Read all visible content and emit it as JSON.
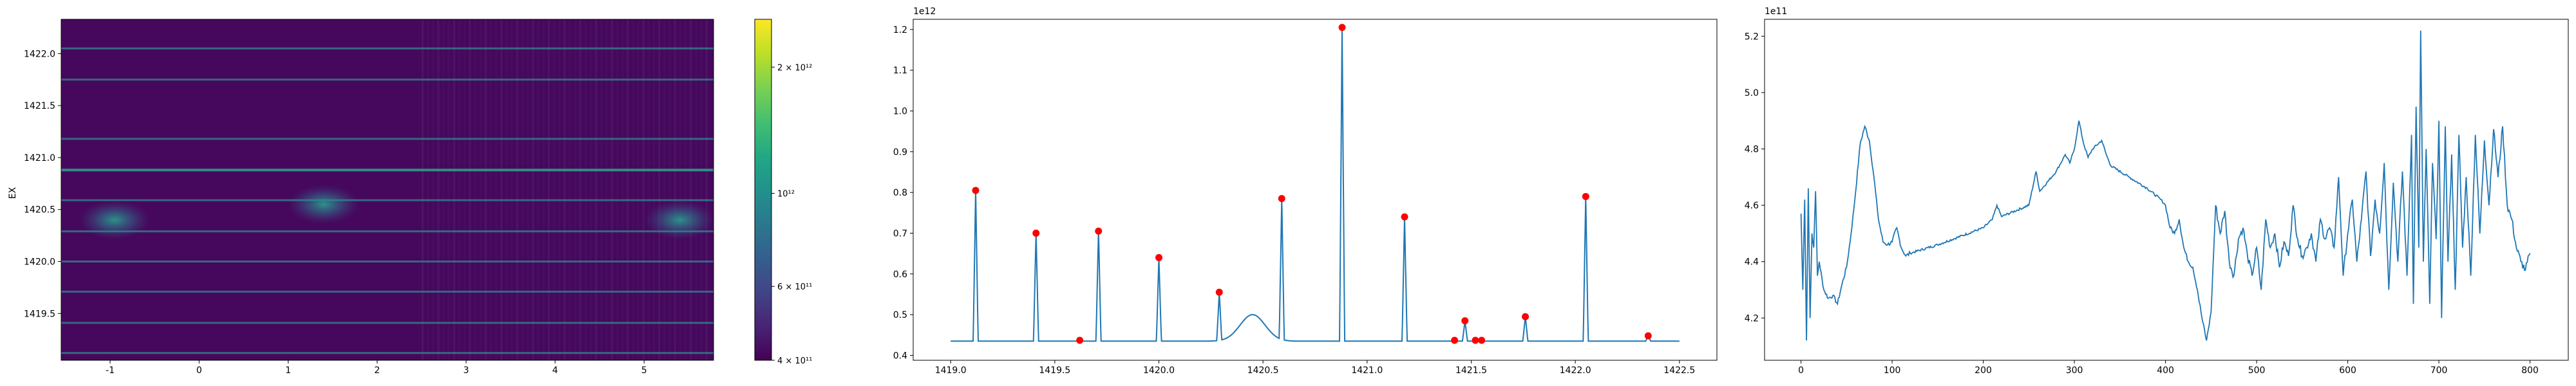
{
  "chart_data": [
    {
      "type": "heatmap",
      "ylabel": "EX",
      "xlim": [
        -1.55,
        5.78
      ],
      "ylim": [
        1419.05,
        1422.33
      ],
      "x_ticks": [
        -1,
        0,
        1,
        2,
        3,
        4,
        5
      ],
      "y_ticks": [
        1419.5,
        1420.0,
        1420.5,
        1421.0,
        1421.5,
        1422.0
      ],
      "y_tick_labels": [
        "1419.5",
        "1420.0",
        "1420.5",
        "1421.0",
        "1421.5",
        "1422.0"
      ],
      "colormap": "viridis",
      "color_scale": "log",
      "vmin": 400000000000,
      "vmax": 2600000000000,
      "colorbar_ticks": [
        {
          "value": 2000000000000,
          "label": "2 × 10¹²"
        },
        {
          "value": 1000000000000,
          "label": "10¹²"
        },
        {
          "value": 600000000000,
          "label": "6 × 10¹¹"
        },
        {
          "value": 400000000000,
          "label": "4 × 10¹¹"
        }
      ],
      "bright_lines_ex": [
        1422.05,
        1421.75,
        1421.18,
        1420.88,
        1420.59,
        1420.29,
        1420.0,
        1419.71,
        1419.41,
        1419.12
      ],
      "blobs": [
        {
          "x": -0.95,
          "ex": 1420.4,
          "value": 900000000000
        },
        {
          "x": 1.4,
          "ex": 1420.55,
          "value": 800000000000
        },
        {
          "x": 5.4,
          "ex": 1420.4,
          "value": 950000000000
        }
      ]
    },
    {
      "type": "line",
      "exponent_label": "1e12",
      "xlim": [
        1418.82,
        1422.68
      ],
      "ylim": [
        0.388,
        1.225
      ],
      "x_ticks": [
        1419.0,
        1419.5,
        1420.0,
        1420.5,
        1421.0,
        1421.5,
        1422.0,
        1422.5
      ],
      "x_tick_labels": [
        "1419.0",
        "1419.5",
        "1420.0",
        "1420.5",
        "1421.0",
        "1421.5",
        "1422.0",
        "1422.5"
      ],
      "y_ticks": [
        0.4,
        0.5,
        0.6,
        0.7,
        0.8,
        0.9,
        1.0,
        1.1,
        1.2
      ],
      "y_tick_labels": [
        "0.4",
        "0.5",
        "0.6",
        "0.7",
        "0.8",
        "0.9",
        "1.0",
        "1.1",
        "1.2"
      ],
      "line_color": "#1f77b4",
      "marker_color": "#ff0000",
      "baseline": 0.435,
      "x_start": 1419.0,
      "x_end": 1422.5,
      "peaks": [
        {
          "x": 1419.12,
          "y": 0.805
        },
        {
          "x": 1419.41,
          "y": 0.7
        },
        {
          "x": 1419.71,
          "y": 0.705
        },
        {
          "x": 1420.0,
          "y": 0.64
        },
        {
          "x": 1420.29,
          "y": 0.555
        },
        {
          "x": 1420.59,
          "y": 0.785
        },
        {
          "x": 1420.88,
          "y": 1.205
        },
        {
          "x": 1421.18,
          "y": 0.74
        },
        {
          "x": 1421.47,
          "y": 0.485
        },
        {
          "x": 1421.76,
          "y": 0.495
        },
        {
          "x": 1422.05,
          "y": 0.79
        },
        {
          "x": 1422.35,
          "y": 0.448
        }
      ],
      "hump": {
        "x": 1420.45,
        "y": 0.5
      },
      "points": [
        {
          "x": 1419.12,
          "y": 0.805
        },
        {
          "x": 1419.41,
          "y": 0.7
        },
        {
          "x": 1419.62,
          "y": 0.437
        },
        {
          "x": 1419.71,
          "y": 0.705
        },
        {
          "x": 1420.0,
          "y": 0.64
        },
        {
          "x": 1420.29,
          "y": 0.555
        },
        {
          "x": 1420.59,
          "y": 0.785
        },
        {
          "x": 1420.88,
          "y": 1.205
        },
        {
          "x": 1421.18,
          "y": 0.74
        },
        {
          "x": 1421.42,
          "y": 0.437
        },
        {
          "x": 1421.47,
          "y": 0.485
        },
        {
          "x": 1421.52,
          "y": 0.437
        },
        {
          "x": 1421.55,
          "y": 0.437
        },
        {
          "x": 1421.76,
          "y": 0.495
        },
        {
          "x": 1422.05,
          "y": 0.79
        },
        {
          "x": 1422.35,
          "y": 0.448
        }
      ]
    },
    {
      "type": "line",
      "exponent_label": "1e11",
      "xlim": [
        -40,
        842
      ],
      "ylim": [
        4.05,
        5.26
      ],
      "x_ticks": [
        0,
        100,
        200,
        300,
        400,
        500,
        600,
        700,
        800
      ],
      "x_tick_labels": [
        "0",
        "100",
        "200",
        "300",
        "400",
        "500",
        "600",
        "700",
        "800"
      ],
      "y_ticks": [
        4.2,
        4.4,
        4.6,
        4.8,
        5.0,
        5.2
      ],
      "y_tick_labels": [
        "4.2",
        "4.4",
        "4.6",
        "4.8",
        "5.0",
        "5.2"
      ],
      "line_color": "#1f77b4",
      "anchors": [
        [
          0,
          4.57
        ],
        [
          2,
          4.3
        ],
        [
          4,
          4.62
        ],
        [
          6,
          4.12
        ],
        [
          8,
          4.66
        ],
        [
          10,
          4.2
        ],
        [
          12,
          4.5
        ],
        [
          14,
          4.45
        ],
        [
          16,
          4.65
        ],
        [
          18,
          4.35
        ],
        [
          20,
          4.4
        ],
        [
          25,
          4.3
        ],
        [
          30,
          4.27
        ],
        [
          35,
          4.28
        ],
        [
          40,
          4.25
        ],
        [
          45,
          4.32
        ],
        [
          50,
          4.38
        ],
        [
          55,
          4.5
        ],
        [
          60,
          4.65
        ],
        [
          65,
          4.82
        ],
        [
          70,
          4.88
        ],
        [
          75,
          4.83
        ],
        [
          80,
          4.7
        ],
        [
          85,
          4.55
        ],
        [
          90,
          4.47
        ],
        [
          95,
          4.46
        ],
        [
          100,
          4.47
        ],
        [
          105,
          4.52
        ],
        [
          110,
          4.45
        ],
        [
          115,
          4.42
        ],
        [
          120,
          4.43
        ],
        [
          150,
          4.46
        ],
        [
          200,
          4.52
        ],
        [
          210,
          4.55
        ],
        [
          215,
          4.6
        ],
        [
          220,
          4.56
        ],
        [
          250,
          4.6
        ],
        [
          258,
          4.72
        ],
        [
          262,
          4.65
        ],
        [
          280,
          4.72
        ],
        [
          290,
          4.78
        ],
        [
          295,
          4.75
        ],
        [
          300,
          4.8
        ],
        [
          305,
          4.9
        ],
        [
          310,
          4.82
        ],
        [
          315,
          4.77
        ],
        [
          320,
          4.8
        ],
        [
          330,
          4.83
        ],
        [
          335,
          4.78
        ],
        [
          340,
          4.74
        ],
        [
          360,
          4.7
        ],
        [
          380,
          4.66
        ],
        [
          395,
          4.62
        ],
        [
          400,
          4.6
        ],
        [
          405,
          4.52
        ],
        [
          410,
          4.5
        ],
        [
          415,
          4.55
        ],
        [
          420,
          4.45
        ],
        [
          425,
          4.4
        ],
        [
          430,
          4.38
        ],
        [
          435,
          4.3
        ],
        [
          440,
          4.2
        ],
        [
          445,
          4.12
        ],
        [
          450,
          4.22
        ],
        [
          455,
          4.6
        ],
        [
          460,
          4.5
        ],
        [
          465,
          4.58
        ],
        [
          470,
          4.4
        ],
        [
          475,
          4.35
        ],
        [
          480,
          4.48
        ],
        [
          485,
          4.52
        ],
        [
          490,
          4.42
        ],
        [
          495,
          4.35
        ],
        [
          500,
          4.45
        ],
        [
          505,
          4.3
        ],
        [
          510,
          4.55
        ],
        [
          515,
          4.45
        ],
        [
          520,
          4.5
        ],
        [
          525,
          4.38
        ],
        [
          530,
          4.47
        ],
        [
          535,
          4.42
        ],
        [
          540,
          4.6
        ],
        [
          545,
          4.48
        ],
        [
          550,
          4.42
        ],
        [
          555,
          4.45
        ],
        [
          560,
          4.5
        ],
        [
          565,
          4.4
        ],
        [
          570,
          4.55
        ],
        [
          575,
          4.48
        ],
        [
          580,
          4.52
        ],
        [
          585,
          4.45
        ],
        [
          590,
          4.7
        ],
        [
          595,
          4.35
        ],
        [
          600,
          4.5
        ],
        [
          605,
          4.62
        ],
        [
          610,
          4.4
        ],
        [
          615,
          4.55
        ],
        [
          620,
          4.72
        ],
        [
          625,
          4.42
        ],
        [
          630,
          4.62
        ],
        [
          635,
          4.5
        ],
        [
          640,
          4.75
        ],
        [
          645,
          4.3
        ],
        [
          650,
          4.68
        ],
        [
          655,
          4.4
        ],
        [
          660,
          4.72
        ],
        [
          665,
          4.35
        ],
        [
          670,
          4.85
        ],
        [
          672,
          4.25
        ],
        [
          675,
          4.95
        ],
        [
          678,
          4.45
        ],
        [
          680,
          5.22
        ],
        [
          683,
          4.4
        ],
        [
          686,
          4.8
        ],
        [
          690,
          4.25
        ],
        [
          693,
          4.75
        ],
        [
          697,
          4.48
        ],
        [
          700,
          4.9
        ],
        [
          703,
          4.2
        ],
        [
          707,
          4.88
        ],
        [
          710,
          4.4
        ],
        [
          714,
          4.78
        ],
        [
          718,
          4.3
        ],
        [
          722,
          4.85
        ],
        [
          726,
          4.45
        ],
        [
          730,
          4.7
        ],
        [
          735,
          4.35
        ],
        [
          740,
          4.85
        ],
        [
          745,
          4.5
        ],
        [
          750,
          4.83
        ],
        [
          755,
          4.6
        ],
        [
          760,
          4.87
        ],
        [
          765,
          4.7
        ],
        [
          770,
          4.88
        ],
        [
          775,
          4.6
        ],
        [
          780,
          4.55
        ],
        [
          785,
          4.45
        ],
        [
          790,
          4.4
        ],
        [
          795,
          4.37
        ],
        [
          800,
          4.43
        ]
      ]
    }
  ]
}
